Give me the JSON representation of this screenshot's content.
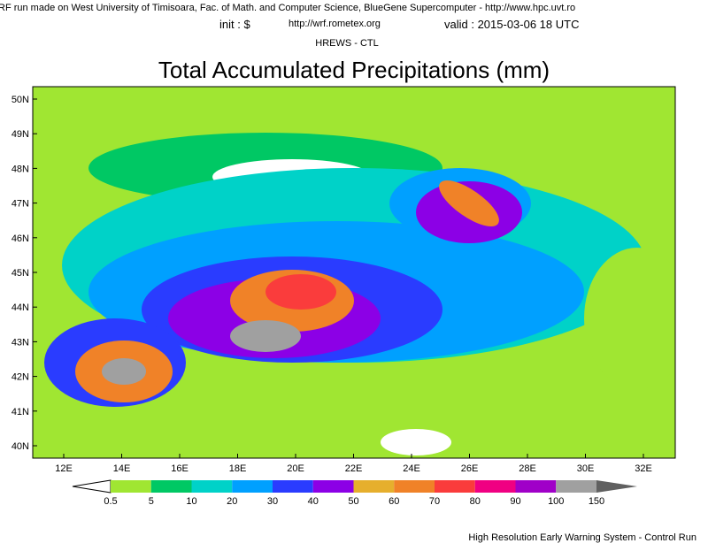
{
  "header": {
    "line1": "RF run made on West University of Timisoara, Fac. of Math. and Computer Science, BlueGene Supercomputer - http://www.hpc.uvt.ro",
    "init": "init : $",
    "url": "http://wrf.rometex.org",
    "valid": "valid : 2015-03-06  18 UTC",
    "model": "HREWS - CTL"
  },
  "title": "Total Accumulated Precipitations (mm)",
  "map": {
    "lat_labels": [
      "50N",
      "49N",
      "48N",
      "47N",
      "46N",
      "45N",
      "44N",
      "43N",
      "42N",
      "41N",
      "40N"
    ],
    "lon_labels": [
      "12E",
      "14E",
      "16E",
      "18E",
      "20E",
      "22E",
      "24E",
      "26E",
      "28E",
      "30E",
      "32E"
    ]
  },
  "colorbar": {
    "labels": [
      0.5,
      5,
      10,
      20,
      30,
      40,
      50,
      60,
      70,
      80,
      90,
      100,
      150
    ],
    "colors": [
      "#a0e632",
      "#00c864",
      "#00d2c8",
      "#00a0ff",
      "#2a3cff",
      "#8c00e6",
      "#e6af2d",
      "#f08228",
      "#fa3c3c",
      "#f00082",
      "#a000c8",
      "#a0a0a0"
    ],
    "low_color": "#ffffff",
    "high_color": "#606060"
  },
  "footer": "High Resolution Early Warning System - Control Run"
}
